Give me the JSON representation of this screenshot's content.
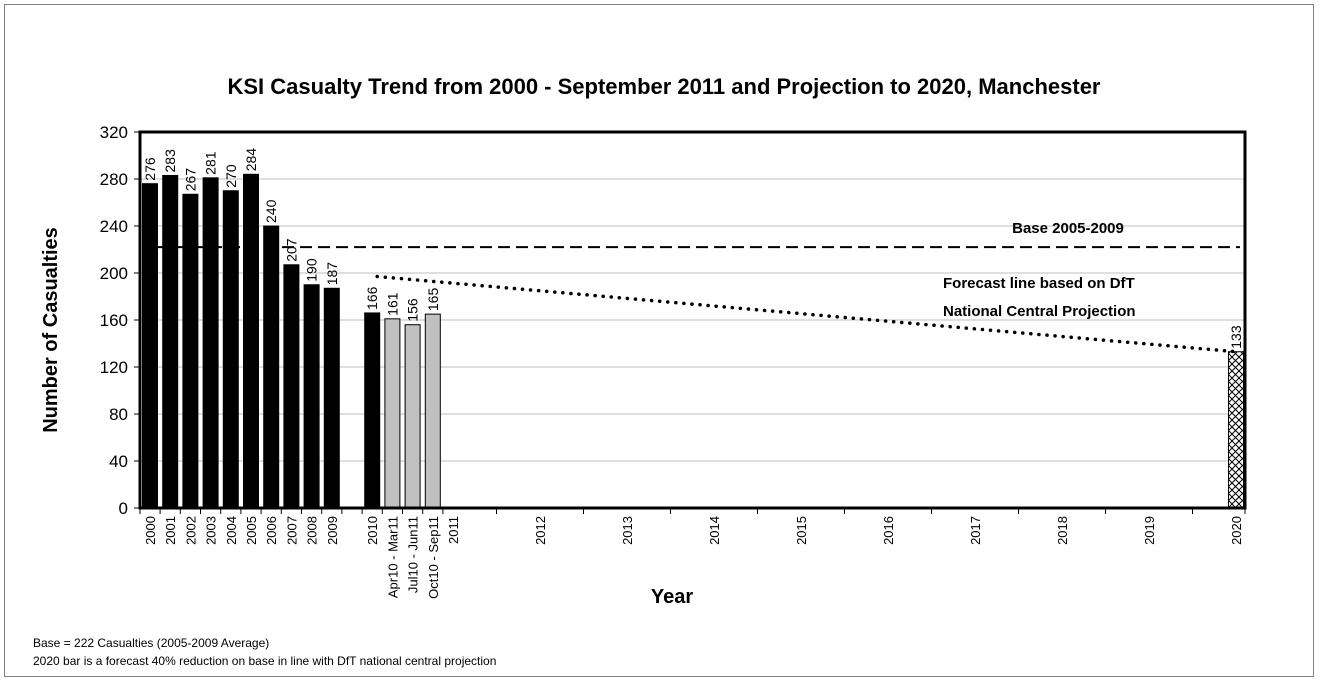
{
  "chart_data": {
    "type": "bar",
    "title": "KSI Casualty Trend from 2000 - September 2011 and Projection to 2020, Manchester",
    "xlabel": "Year",
    "ylabel": "Number of Casualties",
    "ylim": [
      0,
      320
    ],
    "yticks": [
      "0",
      "40",
      "80",
      "120",
      "160",
      "200",
      "240",
      "280",
      "320"
    ],
    "grid": true,
    "categories": [
      "2000",
      "2001",
      "2002",
      "2003",
      "2004",
      "2005",
      "2006",
      "2007",
      "2008",
      "2009",
      "",
      "2010",
      "Apr10 - Mar11",
      "Jul10 - Jun11",
      "Oct10 - Sep11",
      "2011",
      "2012",
      "2013",
      "2014",
      "2015",
      "2016",
      "2017",
      "2018",
      "2019",
      "2020"
    ],
    "bars": [
      {
        "label": "2000",
        "value": 276,
        "style": "actual"
      },
      {
        "label": "2001",
        "value": 283,
        "style": "actual"
      },
      {
        "label": "2002",
        "value": 267,
        "style": "actual"
      },
      {
        "label": "2003",
        "value": 281,
        "style": "actual"
      },
      {
        "label": "2004",
        "value": 270,
        "style": "actual"
      },
      {
        "label": "2005",
        "value": 284,
        "style": "actual"
      },
      {
        "label": "2006",
        "value": 240,
        "style": "actual"
      },
      {
        "label": "2007",
        "value": 207,
        "style": "actual"
      },
      {
        "label": "2008",
        "value": 190,
        "style": "actual"
      },
      {
        "label": "2009",
        "value": 187,
        "style": "actual"
      },
      {
        "label": "2010",
        "value": 166,
        "style": "actual"
      },
      {
        "label": "Apr10 - Mar11",
        "value": 161,
        "style": "rolling"
      },
      {
        "label": "Jul10 - Jun11",
        "value": 156,
        "style": "rolling"
      },
      {
        "label": "Oct10 - Sep11",
        "value": 165,
        "style": "rolling"
      },
      {
        "label": "2020",
        "value": 133,
        "style": "forecast"
      }
    ],
    "data_labels": [
      "276",
      "283",
      "267",
      "281",
      "270",
      "284",
      "240",
      "207",
      "190",
      "187",
      "166",
      "161",
      "156",
      "165",
      "133"
    ],
    "base_line": {
      "value": 222,
      "label": "Base 2005-2009",
      "style": "dashed"
    },
    "forecast_line": {
      "from_label": "2010",
      "from_value": 197,
      "to_label": "2020",
      "to_value": 133,
      "style": "dotted",
      "annotation": [
        "Forecast line based on DfT",
        "National Central Projection"
      ]
    },
    "colors": {
      "actual": "#000000",
      "rolling": "#c0c0c0",
      "forecast_hatch": "#000000",
      "gridline": "#bfbfbf",
      "frame": "#7f7f7f"
    }
  },
  "notes": {
    "line1": "Base = 222 Casualties (2005-2009 Average)",
    "line2": "2020 bar is a forecast 40% reduction on base in line with DfT national central projection"
  }
}
